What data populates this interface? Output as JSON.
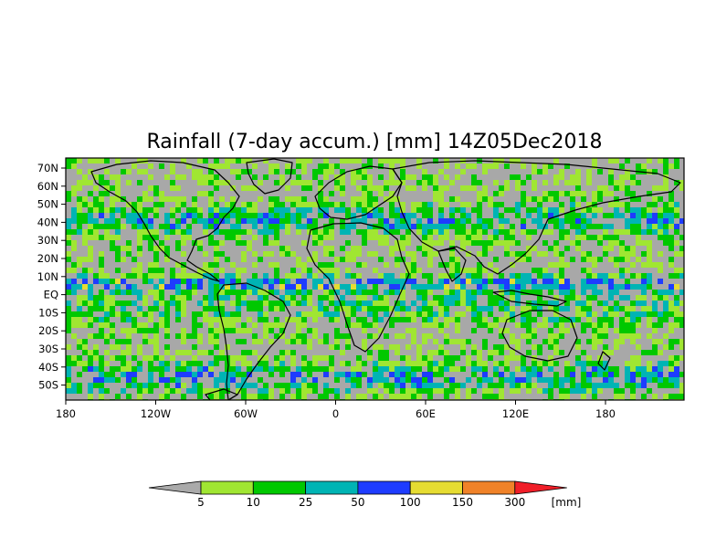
{
  "title": "Rainfall (7-day accum.) [mm] 14Z05Dec2018",
  "map": {
    "background_color": "#a8a8a8",
    "lat_labels": [
      "70N",
      "60N",
      "50N",
      "40N",
      "30N",
      "20N",
      "10N",
      "EQ",
      "10S",
      "20S",
      "30S",
      "40S",
      "50S"
    ],
    "lon_labels": [
      "180",
      "120W",
      "60W",
      "0",
      "60E",
      "120E",
      "180"
    ]
  },
  "colorbar": {
    "thresholds": [
      "5",
      "10",
      "25",
      "50",
      "100",
      "150",
      "300"
    ],
    "unit": "[mm]",
    "colors": [
      "#aaaaaa",
      "#a0e632",
      "#00c800",
      "#00b4b4",
      "#1e3cff",
      "#e6dc32",
      "#f08228",
      "#f01e28"
    ]
  }
}
